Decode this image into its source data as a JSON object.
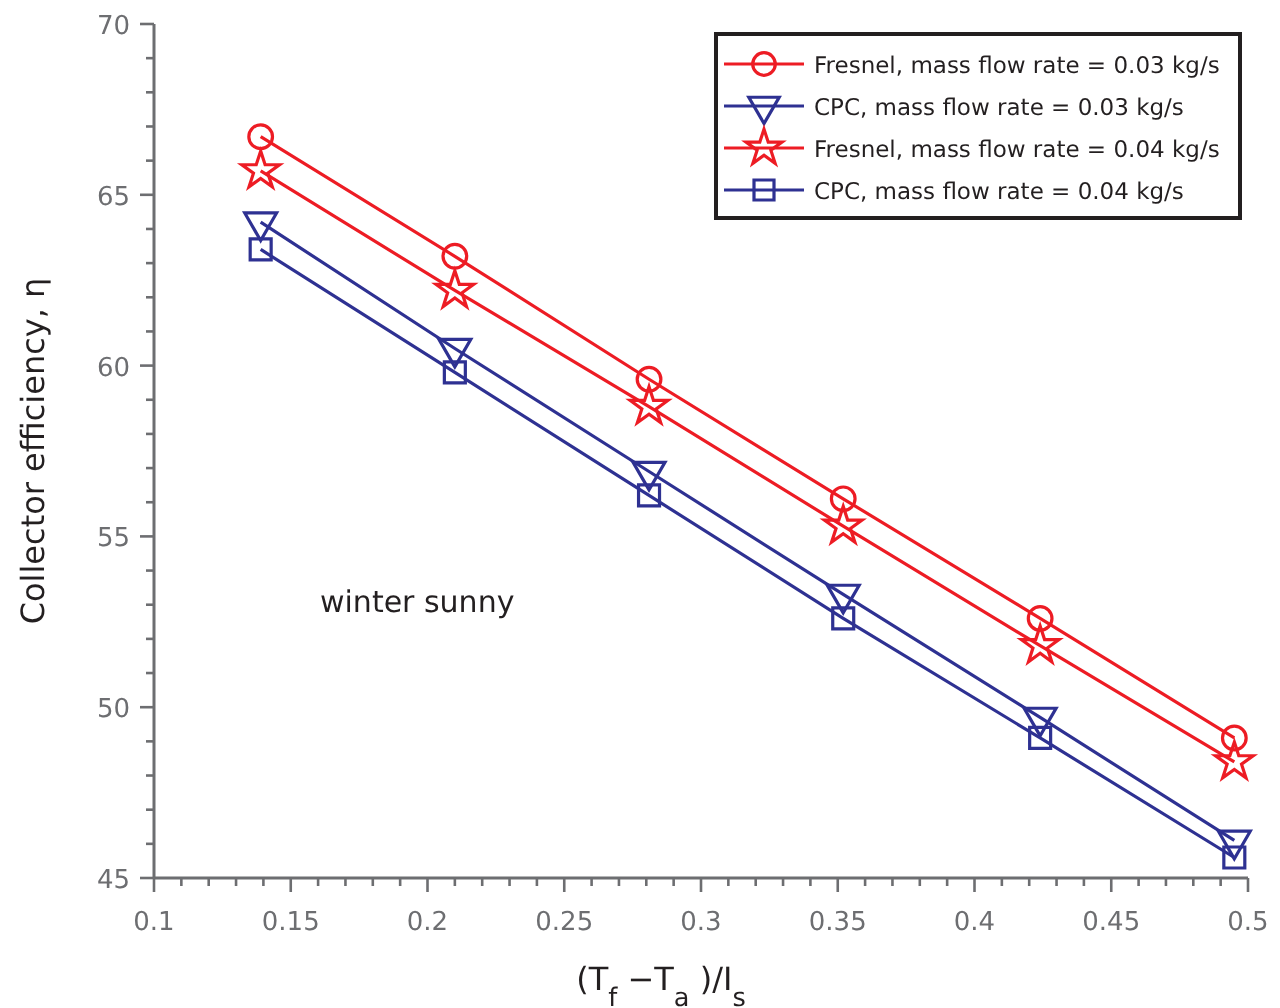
{
  "chart_data": {
    "type": "line",
    "xlabel": "(T$_{f}$ −T$_{a}$ )/I$_{s}$",
    "ylabel": "Collector efficiency, η",
    "annotations": [
      "winter sunny"
    ],
    "x": [
      0.139,
      0.21,
      0.281,
      0.352,
      0.424,
      0.495
    ],
    "series": [
      {
        "name": "Fresnel, mass flow rate = 0.03 kg/s",
        "color": "#ed1c24",
        "marker": "circle",
        "values": [
          66.7,
          63.2,
          59.6,
          56.1,
          52.6,
          49.1
        ]
      },
      {
        "name": "CPC, mass flow rate = 0.03 kg/s",
        "color": "#2e3192",
        "marker": "triangle",
        "values": [
          64.2,
          60.5,
          56.9,
          53.3,
          49.7,
          46.1
        ]
      },
      {
        "name": "Fresnel, mass flow rate = 0.04 kg/s",
        "color": "#ed1c24",
        "marker": "star",
        "values": [
          65.7,
          62.2,
          58.8,
          55.3,
          51.8,
          48.4
        ]
      },
      {
        "name": "CPC, mass flow rate = 0.04 kg/s",
        "color": "#2e3192",
        "marker": "square",
        "values": [
          63.4,
          59.8,
          56.2,
          52.6,
          49.1,
          45.6
        ]
      }
    ],
    "xlim": [
      0.1,
      0.5
    ],
    "ylim": [
      45,
      70
    ],
    "xticks": [
      0.1,
      {
        "value": 0.11,
        "label": null
      },
      {
        "value": 0.12,
        "label": null
      },
      {
        "value": 0.13,
        "label": null
      },
      {
        "value": 0.14,
        "label": null
      },
      0.15,
      {
        "value": 0.16,
        "label": null
      },
      {
        "value": 0.17,
        "label": null
      },
      {
        "value": 0.18,
        "label": null
      },
      {
        "value": 0.19,
        "label": null
      },
      0.2,
      {
        "value": 0.21,
        "label": null
      },
      {
        "value": 0.22,
        "label": null
      },
      {
        "value": 0.23,
        "label": null
      },
      {
        "value": 0.24,
        "label": null
      },
      0.25,
      {
        "value": 0.26,
        "label": null
      },
      {
        "value": 0.27,
        "label": null
      },
      {
        "value": 0.28,
        "label": null
      },
      {
        "value": 0.29,
        "label": null
      },
      0.3,
      {
        "value": 0.31,
        "label": null
      },
      {
        "value": 0.32,
        "label": null
      },
      {
        "value": 0.33,
        "label": null
      },
      {
        "value": 0.34,
        "label": null
      },
      0.35,
      {
        "value": 0.36,
        "label": null
      },
      {
        "value": 0.37,
        "label": null
      },
      {
        "value": 0.38,
        "label": null
      },
      {
        "value": 0.39,
        "label": null
      },
      0.4,
      {
        "value": 0.41,
        "label": null
      },
      {
        "value": 0.42,
        "label": null
      },
      {
        "value": 0.43,
        "label": null
      },
      {
        "value": 0.44,
        "label": null
      },
      0.45,
      {
        "value": 0.46,
        "label": null
      },
      {
        "value": 0.47,
        "label": null
      },
      {
        "value": 0.48,
        "label": null
      },
      {
        "value": 0.49,
        "label": null
      },
      0.5
    ],
    "yticks": [
      45,
      {
        "value": 46,
        "label": null
      },
      {
        "value": 47,
        "label": null
      },
      {
        "value": 48,
        "label": null
      },
      {
        "value": 49,
        "label": null
      },
      50,
      {
        "value": 51,
        "label": null
      },
      {
        "value": 52,
        "label": null
      },
      {
        "value": 53,
        "label": null
      },
      {
        "value": 54,
        "label": null
      },
      55,
      {
        "value": 56,
        "label": null
      },
      {
        "value": 57,
        "label": null
      },
      {
        "value": 58,
        "label": null
      },
      {
        "value": 59,
        "label": null
      },
      60,
      {
        "value": 61,
        "label": null
      },
      {
        "value": 62,
        "label": null
      },
      {
        "value": 63,
        "label": null
      },
      {
        "value": 64,
        "label": null
      },
      65,
      {
        "value": 66,
        "label": null
      },
      {
        "value": 67,
        "label": null
      },
      {
        "value": 68,
        "label": null
      },
      {
        "value": 69,
        "label": null
      },
      70
    ],
    "legend": "top right",
    "grid": false,
    "line_style": "solid"
  }
}
